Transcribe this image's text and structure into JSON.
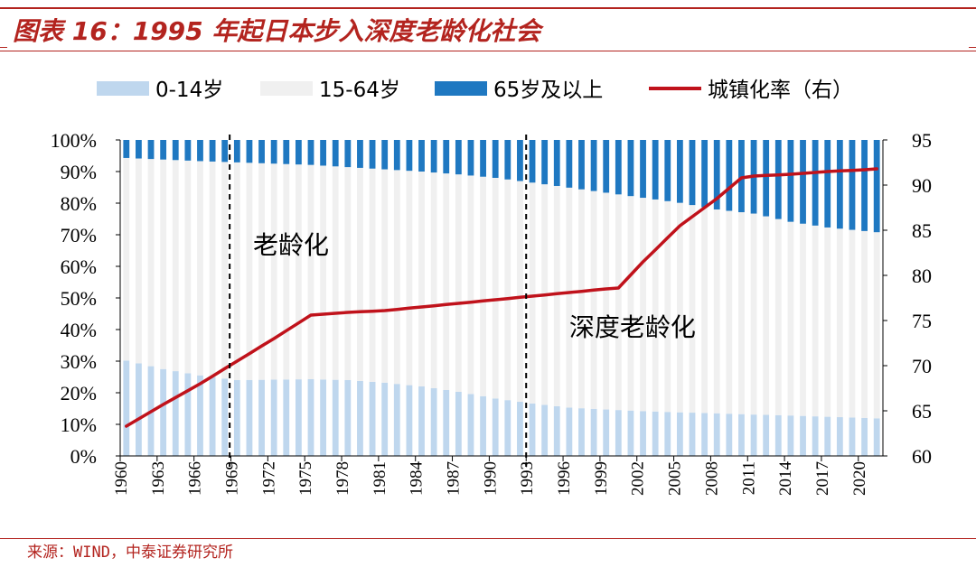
{
  "header": {
    "title": "图表 16：1995 年起日本步入深度老龄化社会"
  },
  "footer": {
    "source": "来源：WIND，中泰证券研究所"
  },
  "colors": {
    "age_0_14": "#bfd7ee",
    "age_15_64": "#f0f0f0",
    "age_65_plus": "#1f78c1",
    "urbanization": "#c0121b",
    "brand": "#b3241f"
  },
  "chart_data": {
    "type": "bar",
    "stacked": true,
    "x_start": 1960,
    "x_end": 2021,
    "x_tick_labels": [
      "1960",
      "1963",
      "1966",
      "1969",
      "1972",
      "1975",
      "1978",
      "1981",
      "1984",
      "1987",
      "1990",
      "1993",
      "1996",
      "1999",
      "2002",
      "2005",
      "2008",
      "2011",
      "2014",
      "2017",
      "2020"
    ],
    "y_left": {
      "min": 0,
      "max": 100,
      "step": 10,
      "tick_labels": [
        "0%",
        "10%",
        "20%",
        "30%",
        "40%",
        "50%",
        "60%",
        "70%",
        "80%",
        "90%",
        "100%"
      ]
    },
    "y_right": {
      "min": 60,
      "max": 95,
      "step": 5,
      "tick_labels": [
        "60",
        "65",
        "70",
        "75",
        "80",
        "85",
        "90",
        "95"
      ]
    },
    "legend_position": "top",
    "series": [
      {
        "name": "0-14岁",
        "kind": "bar",
        "anchors": [
          [
            1960,
            30.2
          ],
          [
            1963,
            27.5
          ],
          [
            1966,
            25.5
          ],
          [
            1969,
            24.0
          ],
          [
            1975,
            24.3
          ],
          [
            1978,
            24.0
          ],
          [
            1981,
            23.2
          ],
          [
            1984,
            22.0
          ],
          [
            1987,
            20.3
          ],
          [
            1990,
            18.2
          ],
          [
            1993,
            16.6
          ],
          [
            1996,
            15.3
          ],
          [
            1999,
            14.7
          ],
          [
            2002,
            14.2
          ],
          [
            2005,
            13.8
          ],
          [
            2008,
            13.5
          ],
          [
            2011,
            13.1
          ],
          [
            2014,
            12.8
          ],
          [
            2017,
            12.4
          ],
          [
            2021,
            11.9
          ]
        ]
      },
      {
        "name": "15-64岁",
        "kind": "bar",
        "note": "remainder"
      },
      {
        "name": "65岁及以上",
        "kind": "bar",
        "anchors": [
          [
            1960,
            5.7
          ],
          [
            1963,
            6.2
          ],
          [
            1966,
            6.7
          ],
          [
            1969,
            7.1
          ],
          [
            1975,
            7.9
          ],
          [
            1978,
            8.6
          ],
          [
            1981,
            9.3
          ],
          [
            1984,
            10.0
          ],
          [
            1987,
            10.9
          ],
          [
            1990,
            12.0
          ],
          [
            1993,
            13.5
          ],
          [
            1996,
            15.1
          ],
          [
            1999,
            16.7
          ],
          [
            2002,
            18.3
          ],
          [
            2005,
            19.9
          ],
          [
            2008,
            22.0
          ],
          [
            2011,
            23.3
          ],
          [
            2014,
            25.9
          ],
          [
            2017,
            27.7
          ],
          [
            2021,
            29.2
          ]
        ]
      },
      {
        "name": "城镇化率（右）",
        "kind": "line",
        "axis": "right",
        "anchors": [
          [
            1960,
            63.3
          ],
          [
            1963,
            65.7
          ],
          [
            1966,
            68.0
          ],
          [
            1969,
            70.5
          ],
          [
            1972,
            73.0
          ],
          [
            1975,
            75.6
          ],
          [
            1978,
            75.9
          ],
          [
            1981,
            76.1
          ],
          [
            1984,
            76.5
          ],
          [
            1987,
            76.9
          ],
          [
            1990,
            77.3
          ],
          [
            1993,
            77.7
          ],
          [
            1996,
            78.1
          ],
          [
            1999,
            78.5
          ],
          [
            2000,
            78.6
          ],
          [
            2002,
            81.5
          ],
          [
            2005,
            85.5
          ],
          [
            2008,
            88.5
          ],
          [
            2010,
            90.8
          ],
          [
            2011,
            91.0
          ],
          [
            2014,
            91.2
          ],
          [
            2017,
            91.5
          ],
          [
            2020,
            91.7
          ],
          [
            2021,
            91.8
          ]
        ]
      }
    ],
    "annotations": [
      {
        "text": "老龄化",
        "x": 1970.8,
        "y_pct": 64
      },
      {
        "text": "深度老龄化",
        "x": 1996.5,
        "y_pct": 38
      }
    ],
    "dividers_x": [
      1968.9,
      1993.0
    ]
  }
}
